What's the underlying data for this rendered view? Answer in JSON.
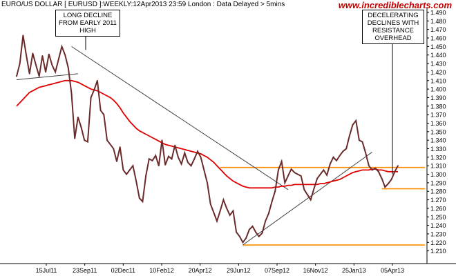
{
  "header": {
    "title": "EURO/US DOLLAR [ EURUSD ]:WEEKLY:12Apr2013 23:59 London : Data Delayed > 5mins",
    "brand": "www.incrediblecharts.com"
  },
  "annotations": {
    "left": [
      "LONG DECLINE",
      "FROM EARLY 2011",
      "HIGH"
    ],
    "right": [
      "DECELERATING",
      "DECLINES WITH",
      "RESISTANCE",
      "OVERHEAD"
    ]
  },
  "colors": {
    "price": "#6b2a2a",
    "moving_average": "#e00000",
    "support_resistance": "#ff8c00",
    "trendline": "#404040",
    "brand": "#c40000"
  },
  "chart_data": {
    "type": "line",
    "title": "EURO/US DOLLAR [ EURUSD ]:WEEKLY",
    "x_tick_labels": [
      "15Jul11",
      "23Sep11",
      "02Dec11",
      "10Feb12",
      "20Apr12",
      "29Jun12",
      "07Sep12",
      "16Nov12",
      "25Jan13",
      "05Apr13"
    ],
    "ylim": [
      1.2,
      1.49
    ],
    "y_ticks": [
      1.21,
      1.22,
      1.23,
      1.24,
      1.25,
      1.26,
      1.27,
      1.28,
      1.29,
      1.3,
      1.31,
      1.32,
      1.33,
      1.34,
      1.35,
      1.36,
      1.37,
      1.38,
      1.39,
      1.4,
      1.41,
      1.42,
      1.43,
      1.44,
      1.45,
      1.46,
      1.47,
      1.48,
      1.49
    ],
    "series": [
      {
        "values": [
          1.415,
          1.43,
          1.463,
          1.44,
          1.418,
          1.442,
          1.428,
          1.415,
          1.439,
          1.42,
          1.441,
          1.428,
          1.42,
          1.435,
          1.45,
          1.44,
          1.425,
          1.395,
          1.342,
          1.367,
          1.355,
          1.34,
          1.338,
          1.39,
          1.399,
          1.41,
          1.375,
          1.37,
          1.34,
          1.335,
          1.33,
          1.315,
          1.332,
          1.305,
          1.3,
          1.305,
          1.31,
          1.292,
          1.272,
          1.268,
          1.298,
          1.318,
          1.316,
          1.322,
          1.31,
          1.34,
          1.311,
          1.321,
          1.318,
          1.334,
          1.32,
          1.312,
          1.325,
          1.314,
          1.31,
          1.318,
          1.327,
          1.32,
          1.305,
          1.29,
          1.265,
          1.255,
          1.245,
          1.257,
          1.27,
          1.26,
          1.252,
          1.257,
          1.232,
          1.227,
          1.22,
          1.225,
          1.235,
          1.239,
          1.232,
          1.227,
          1.231,
          1.245,
          1.254,
          1.268,
          1.28,
          1.305,
          1.315,
          1.29,
          1.298,
          1.306,
          1.302,
          1.3,
          1.298,
          1.282,
          1.276,
          1.27,
          1.283,
          1.295,
          1.3,
          1.305,
          1.299,
          1.312,
          1.32,
          1.316,
          1.322,
          1.327,
          1.33,
          1.345,
          1.358,
          1.363,
          1.34,
          1.338,
          1.325,
          1.31,
          1.305,
          1.307,
          1.303,
          1.295,
          1.285,
          1.289,
          1.294,
          1.303,
          1.31
        ]
      },
      {
        "values": [
          1.38,
          1.384,
          1.388,
          1.392,
          1.396,
          1.398,
          1.4,
          1.402,
          1.403,
          1.404,
          1.405,
          1.406,
          1.407,
          1.408,
          1.409,
          1.41,
          1.41,
          1.41,
          1.409,
          1.408,
          1.406,
          1.404,
          1.402,
          1.4,
          1.399,
          1.398,
          1.396,
          1.394,
          1.392,
          1.39,
          1.387,
          1.383,
          1.378,
          1.372,
          1.367,
          1.362,
          1.358,
          1.354,
          1.351,
          1.349,
          1.347,
          1.345,
          1.343,
          1.341,
          1.339,
          1.337,
          1.335,
          1.334,
          1.333,
          1.332,
          1.331,
          1.33,
          1.329,
          1.328,
          1.327,
          1.326,
          1.325,
          1.324,
          1.322,
          1.32,
          1.317,
          1.314,
          1.31,
          1.306,
          1.302,
          1.298,
          1.295,
          1.292,
          1.29,
          1.288,
          1.286,
          1.285,
          1.284,
          1.284,
          1.284,
          1.284,
          1.284,
          1.284,
          1.284,
          1.284,
          1.285,
          1.285,
          1.286,
          1.286,
          1.287,
          1.287,
          1.288,
          1.288,
          1.288,
          1.288,
          1.288,
          1.288,
          1.288,
          1.288,
          1.289,
          1.289,
          1.29,
          1.291,
          1.292,
          1.293,
          1.294,
          1.296,
          1.298,
          1.3,
          1.302,
          1.303,
          1.304,
          1.305,
          1.305,
          1.305,
          1.306,
          1.306,
          1.305,
          1.305,
          1.304,
          1.303,
          1.303,
          1.303,
          1.303
        ]
      }
    ],
    "horizontal_levels": [
      {
        "y": 1.308,
        "start_index": 63
      },
      {
        "y": 1.283,
        "start_index": 113
      },
      {
        "y": 1.217,
        "start_index": 70
      }
    ],
    "trendlines": [
      {
        "from": [
          0,
          1.411
        ],
        "to": [
          19,
          1.418
        ]
      },
      {
        "from": [
          17,
          1.45
        ],
        "to": [
          84,
          1.282
        ]
      },
      {
        "from": [
          70,
          1.217
        ],
        "to": [
          110,
          1.326
        ]
      }
    ],
    "grid": false,
    "legend": "none"
  }
}
